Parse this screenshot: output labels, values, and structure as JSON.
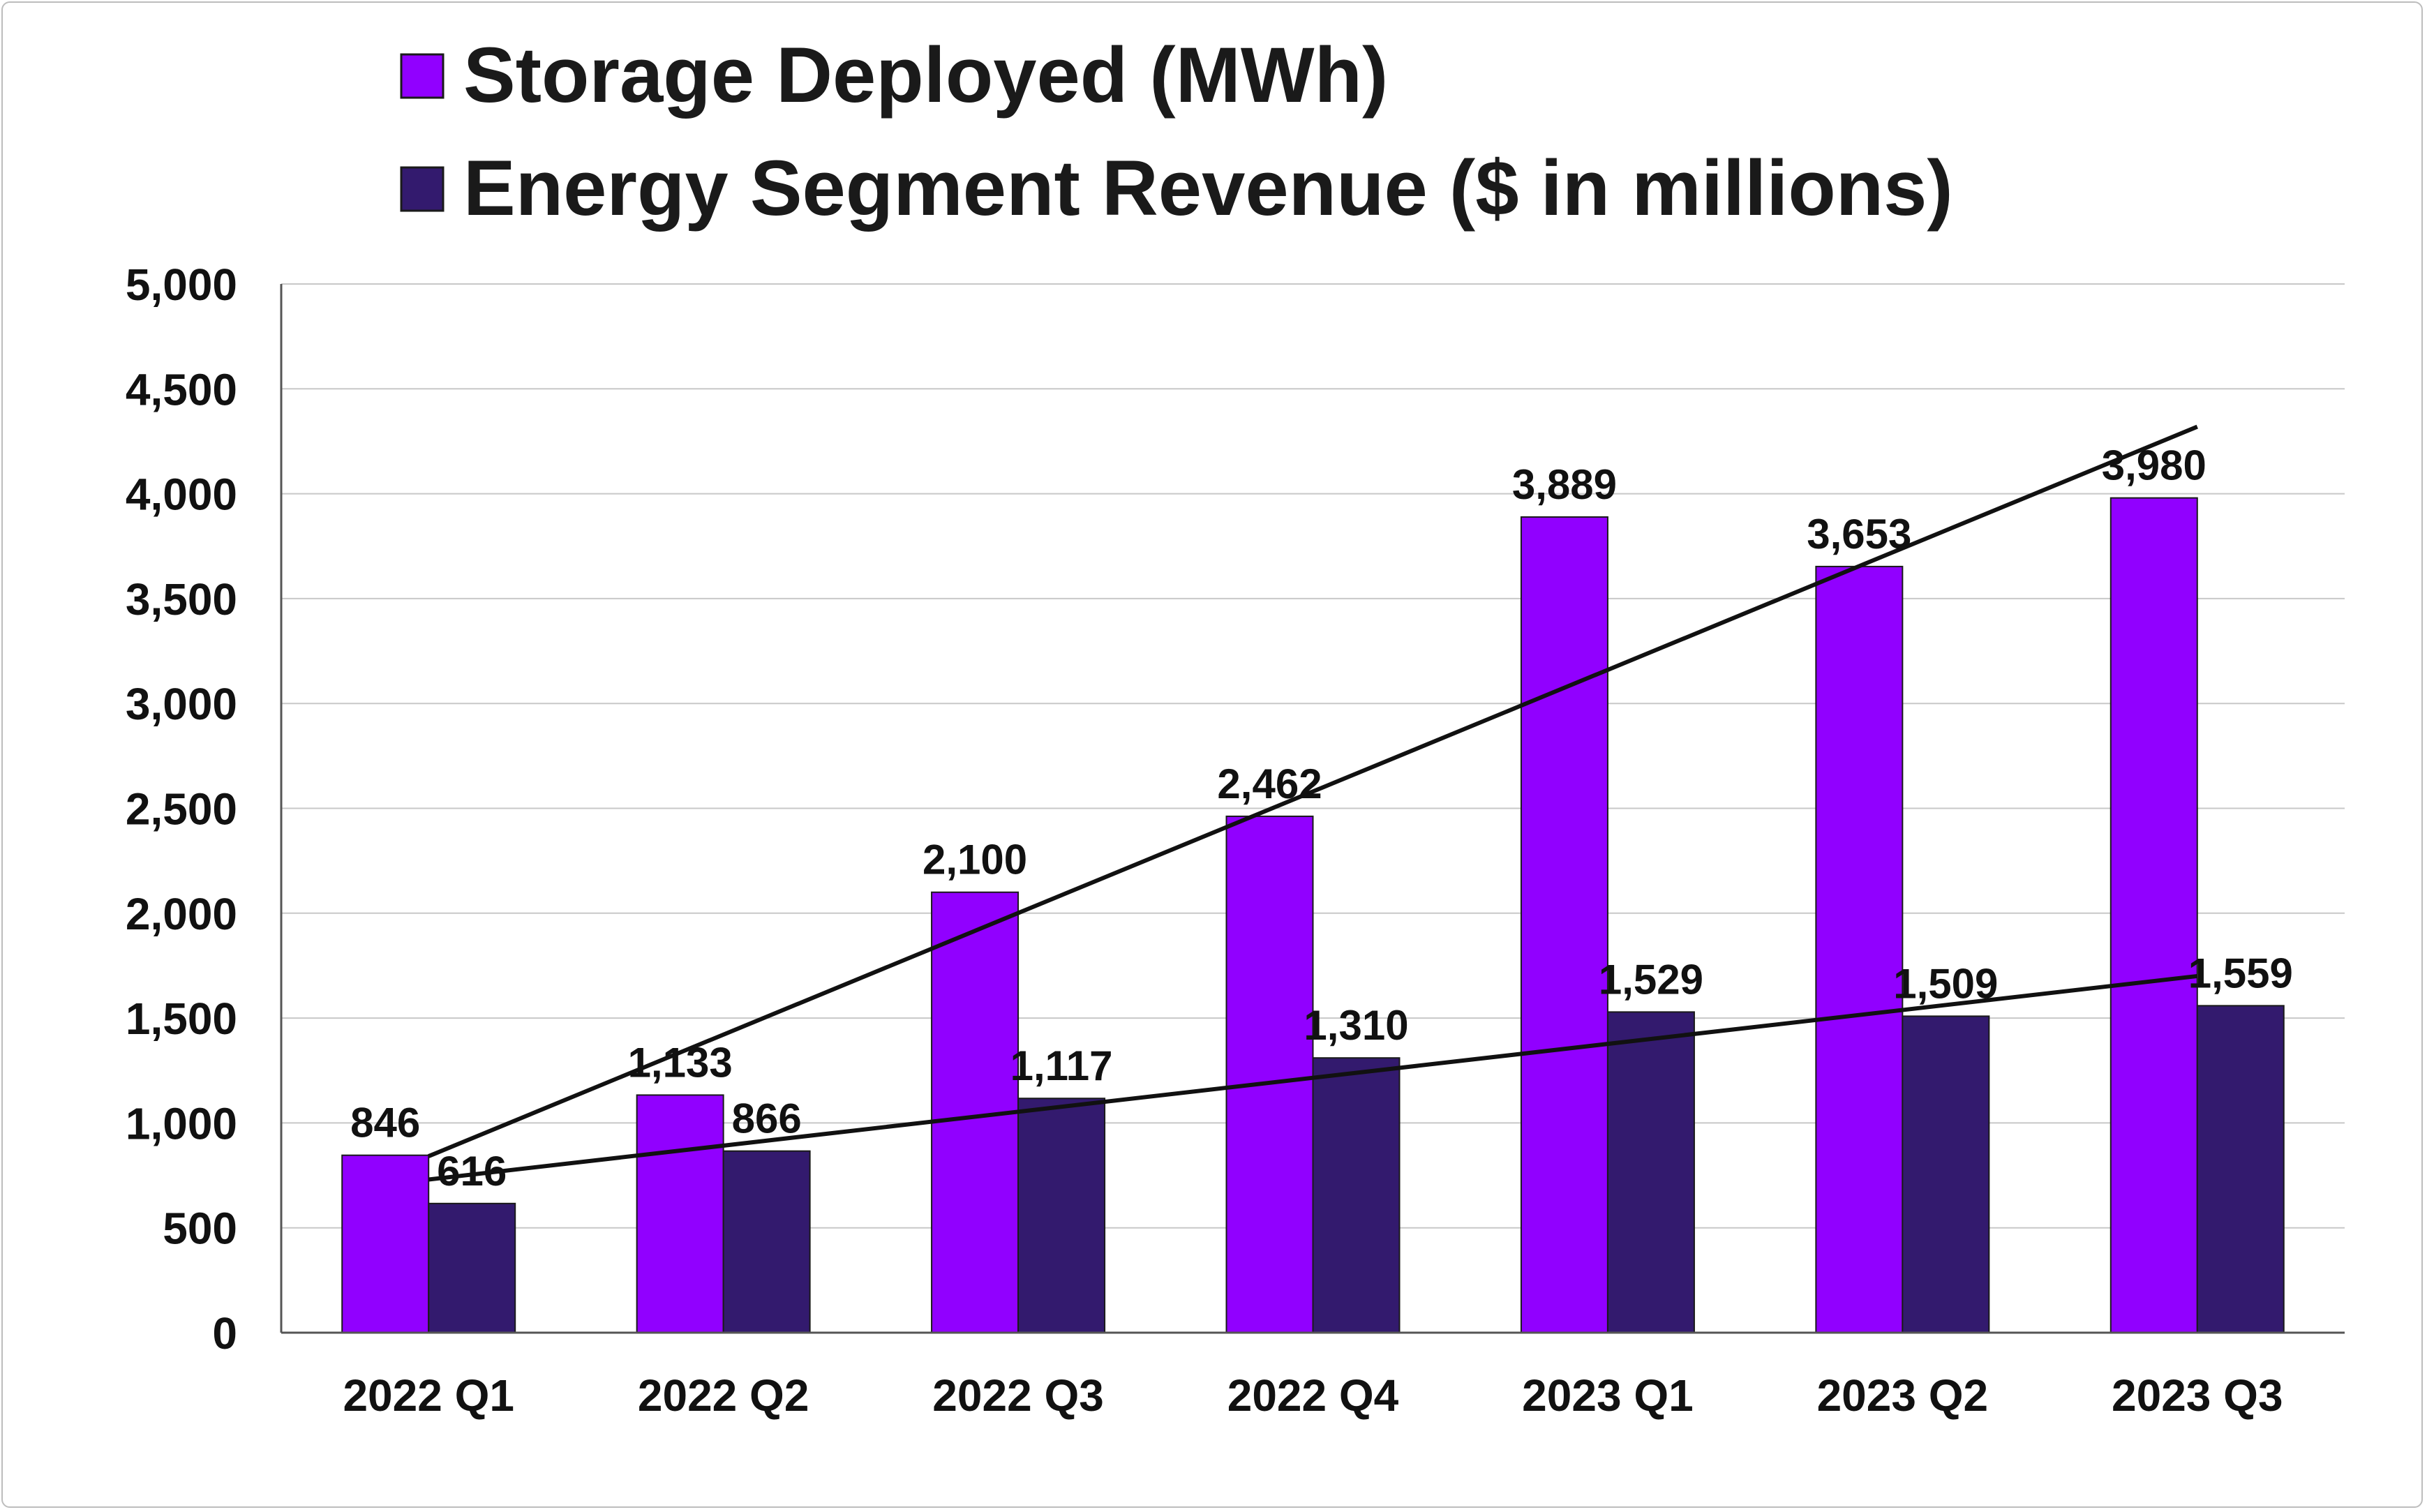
{
  "chart_data": {
    "type": "bar",
    "categories": [
      "2022 Q1",
      "2022 Q2",
      "2022 Q3",
      "2022 Q4",
      "2023 Q1",
      "2023 Q2",
      "2023 Q3"
    ],
    "series": [
      {
        "name": "Storage Deployed (MWh)",
        "values": [
          846,
          1133,
          2100,
          2462,
          3889,
          3653,
          3980
        ],
        "labels": [
          "846",
          "1,133",
          "2,100",
          "2,462",
          "3,889",
          "3,653",
          "3,980"
        ],
        "color": "#9100FF",
        "trendline": true
      },
      {
        "name": "Energy Segment Revenue ($ in millions)",
        "values": [
          616,
          866,
          1117,
          1310,
          1529,
          1509,
          1559
        ],
        "labels": [
          "616",
          "866",
          "1,117",
          "1,310",
          "1,529",
          "1,509",
          "1,559"
        ],
        "color": "#331A6E",
        "trendline": true
      }
    ],
    "ylim": [
      0,
      5000
    ],
    "yticks": [
      0,
      500,
      1000,
      1500,
      2000,
      2500,
      3000,
      3500,
      4000,
      4500,
      5000
    ],
    "ytick_labels": [
      "0",
      "500",
      "1,000",
      "1,500",
      "2,000",
      "2,500",
      "3,000",
      "3,500",
      "4,000",
      "4,500",
      "5,000"
    ],
    "grid": true,
    "legend_position": "top",
    "trendline_color": "#111111",
    "title": "",
    "xlabel": "",
    "ylabel": ""
  }
}
